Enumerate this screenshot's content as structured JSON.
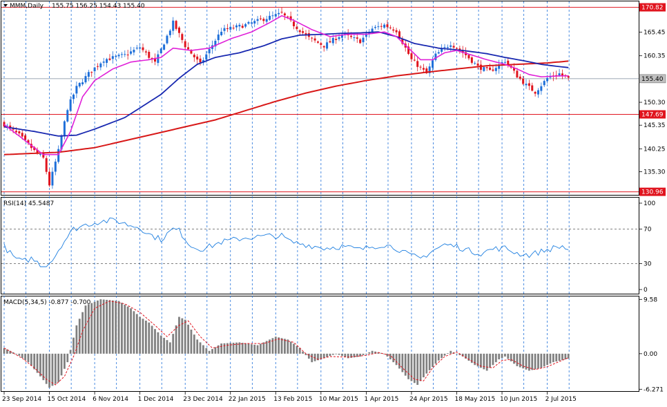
{
  "header": {
    "symbol_label": "MMM,Daily",
    "ohlc_label": "155.75 156.25 154.43 155.40"
  },
  "colors": {
    "bull": "#1e6fd9",
    "bear": "#e0141e",
    "ma_fast": "#e020d8",
    "ma_mid": "#1828b0",
    "ma_slow": "#d81818",
    "hline": "#e0141e",
    "rsi": "#1e7fe0",
    "macd_hist": "#808080",
    "macd_signal": "#e0141e",
    "grid": "#1e6fd9"
  },
  "chart_data": [
    {
      "type": "candlestick",
      "panel": "price",
      "ylim": [
        130.3,
        172.1
      ],
      "ytick_labels": [
        "165.45",
        "160.35",
        "150.30",
        "145.35",
        "140.25",
        "135.30"
      ],
      "ytick_values": [
        165.45,
        160.35,
        150.3,
        145.35,
        140.25,
        135.3
      ],
      "hlines": [
        {
          "value": 170.82,
          "label": "170.82"
        },
        {
          "value": 147.69,
          "label": "147.69"
        },
        {
          "value": 130.96,
          "label": "130.96"
        }
      ],
      "current_price": {
        "value": 155.4,
        "label": "155.40"
      },
      "x_labels": [
        "23 Sep 2014",
        "15 Oct 2014",
        "6 Nov 2014",
        "1 Dec 2014",
        "23 Dec 2014",
        "22 Jan 2015",
        "13 Feb 2015",
        "10 Mar 2015",
        "1 Apr 2015",
        "24 Apr 2015",
        "18 May 2015",
        "10 Jun 2015",
        "2 Jul 2015"
      ],
      "x_label_bars": [
        0,
        15,
        30,
        45,
        60,
        75,
        90,
        105,
        120,
        135,
        150,
        165,
        180
      ],
      "close_anchors": [
        [
          0,
          145.5
        ],
        [
          5,
          143.2
        ],
        [
          10,
          139.8
        ],
        [
          13,
          138.2
        ],
        [
          15,
          132.5
        ],
        [
          18,
          139.8
        ],
        [
          21,
          149.0
        ],
        [
          24,
          153.5
        ],
        [
          28,
          156.5
        ],
        [
          33,
          159.5
        ],
        [
          40,
          160.5
        ],
        [
          45,
          162.2
        ],
        [
          50,
          158.8
        ],
        [
          56,
          167.5
        ],
        [
          60,
          162.5
        ],
        [
          65,
          158.5
        ],
        [
          72,
          165.8
        ],
        [
          80,
          167.0
        ],
        [
          87,
          168.5
        ],
        [
          92,
          169.5
        ],
        [
          96,
          167.0
        ],
        [
          101,
          164.2
        ],
        [
          106,
          162.5
        ],
        [
          112,
          165.0
        ],
        [
          118,
          163.5
        ],
        [
          122,
          166.2
        ],
        [
          126,
          167.0
        ],
        [
          130,
          165.8
        ],
        [
          135,
          159.5
        ],
        [
          140,
          156.5
        ],
        [
          143,
          160.5
        ],
        [
          148,
          163.0
        ],
        [
          153,
          160.5
        ],
        [
          157,
          158.0
        ],
        [
          161,
          157.0
        ],
        [
          166,
          159.3
        ],
        [
          170,
          156.0
        ],
        [
          173,
          154.0
        ],
        [
          176,
          152.5
        ],
        [
          180,
          155.5
        ],
        [
          184,
          156.5
        ],
        [
          187,
          155.4
        ]
      ],
      "ma_fast_anchors": [
        [
          0,
          145.5
        ],
        [
          7,
          142.0
        ],
        [
          13,
          139.0
        ],
        [
          18,
          139.0
        ],
        [
          22,
          144.0
        ],
        [
          26,
          151.5
        ],
        [
          30,
          155.0
        ],
        [
          36,
          157.5
        ],
        [
          42,
          159.0
        ],
        [
          48,
          159.5
        ],
        [
          52,
          160.0
        ],
        [
          56,
          162.0
        ],
        [
          62,
          161.5
        ],
        [
          68,
          162.0
        ],
        [
          75,
          164.0
        ],
        [
          82,
          165.5
        ],
        [
          88,
          167.5
        ],
        [
          92,
          169.0
        ],
        [
          96,
          168.0
        ],
        [
          102,
          166.0
        ],
        [
          108,
          164.5
        ],
        [
          114,
          165.0
        ],
        [
          120,
          165.0
        ],
        [
          126,
          165.5
        ],
        [
          130,
          164.5
        ],
        [
          134,
          162.0
        ],
        [
          138,
          159.5
        ],
        [
          142,
          159.5
        ],
        [
          146,
          161.0
        ],
        [
          150,
          161.5
        ],
        [
          155,
          160.5
        ],
        [
          160,
          159.5
        ],
        [
          166,
          158.5
        ],
        [
          170,
          157.5
        ],
        [
          174,
          156.3
        ],
        [
          178,
          155.8
        ],
        [
          184,
          156.0
        ],
        [
          187,
          156.0
        ]
      ],
      "ma_mid_anchors": [
        [
          0,
          145.0
        ],
        [
          10,
          144.0
        ],
        [
          18,
          143.0
        ],
        [
          24,
          143.2
        ],
        [
          30,
          144.5
        ],
        [
          40,
          147.0
        ],
        [
          46,
          149.5
        ],
        [
          52,
          152.0
        ],
        [
          58,
          155.5
        ],
        [
          64,
          158.5
        ],
        [
          70,
          160.0
        ],
        [
          78,
          161.0
        ],
        [
          86,
          162.5
        ],
        [
          92,
          164.0
        ],
        [
          98,
          164.8
        ],
        [
          106,
          165.0
        ],
        [
          112,
          165.2
        ],
        [
          118,
          165.3
        ],
        [
          124,
          165.5
        ],
        [
          130,
          164.5
        ],
        [
          136,
          163.0
        ],
        [
          144,
          162.0
        ],
        [
          152,
          161.5
        ],
        [
          160,
          160.8
        ],
        [
          166,
          160.0
        ],
        [
          172,
          159.3
        ],
        [
          178,
          158.5
        ],
        [
          184,
          158.0
        ],
        [
          187,
          157.8
        ]
      ],
      "ma_slow_anchors": [
        [
          0,
          139.0
        ],
        [
          18,
          139.5
        ],
        [
          30,
          140.5
        ],
        [
          40,
          142.0
        ],
        [
          50,
          143.5
        ],
        [
          60,
          145.0
        ],
        [
          70,
          146.5
        ],
        [
          80,
          148.5
        ],
        [
          90,
          150.5
        ],
        [
          100,
          152.3
        ],
        [
          110,
          153.8
        ],
        [
          120,
          155.0
        ],
        [
          130,
          156.0
        ],
        [
          140,
          156.8
        ],
        [
          150,
          157.5
        ],
        [
          160,
          158.2
        ],
        [
          170,
          158.5
        ],
        [
          180,
          158.8
        ],
        [
          187,
          159.2
        ]
      ]
    },
    {
      "type": "line",
      "panel": "rsi",
      "label": "RSI(14) 45.5487",
      "ylim": [
        0,
        100
      ],
      "ytick_labels": [
        "100",
        "70",
        "30",
        "0"
      ],
      "ytick_values": [
        100,
        70,
        30,
        0
      ],
      "levels": [
        70,
        30
      ],
      "anchors": [
        [
          0,
          50
        ],
        [
          3,
          38
        ],
        [
          6,
          32
        ],
        [
          9,
          36
        ],
        [
          13,
          27
        ],
        [
          16,
          34
        ],
        [
          19,
          52
        ],
        [
          23,
          70
        ],
        [
          27,
          75
        ],
        [
          32,
          79
        ],
        [
          37,
          80
        ],
        [
          41,
          75
        ],
        [
          45,
          72
        ],
        [
          48,
          64
        ],
        [
          52,
          58
        ],
        [
          56,
          70
        ],
        [
          58,
          68
        ],
        [
          62,
          50
        ],
        [
          66,
          47
        ],
        [
          72,
          55
        ],
        [
          80,
          60
        ],
        [
          88,
          62
        ],
        [
          92,
          62
        ],
        [
          95,
          55
        ],
        [
          100,
          52
        ],
        [
          106,
          48
        ],
        [
          112,
          50
        ],
        [
          118,
          46
        ],
        [
          122,
          50
        ],
        [
          126,
          52
        ],
        [
          130,
          48
        ],
        [
          134,
          40
        ],
        [
          138,
          36
        ],
        [
          142,
          45
        ],
        [
          146,
          52
        ],
        [
          150,
          50
        ],
        [
          154,
          45
        ],
        [
          158,
          42
        ],
        [
          162,
          47
        ],
        [
          166,
          48
        ],
        [
          170,
          42
        ],
        [
          174,
          40
        ],
        [
          178,
          44
        ],
        [
          182,
          48
        ],
        [
          185,
          50
        ],
        [
          187,
          46
        ]
      ]
    },
    {
      "type": "bar",
      "panel": "macd",
      "label": "MACD(5,34,5) -0.877 -0.700",
      "ylim": [
        -6.6,
        10.1
      ],
      "ytick_labels": [
        "9.58",
        "0.00",
        "-6.271"
      ],
      "ytick_values": [
        9.58,
        0.0,
        -6.271
      ],
      "histogram_anchors": [
        [
          0,
          1.0
        ],
        [
          4,
          0.0
        ],
        [
          8,
          -1.5
        ],
        [
          12,
          -4.0
        ],
        [
          15,
          -6.0
        ],
        [
          18,
          -5.0
        ],
        [
          21,
          -1.5
        ],
        [
          24,
          5.0
        ],
        [
          27,
          8.5
        ],
        [
          32,
          9.6
        ],
        [
          38,
          9.3
        ],
        [
          42,
          8.0
        ],
        [
          45,
          6.5
        ],
        [
          48,
          5.5
        ],
        [
          52,
          3.2
        ],
        [
          55,
          2.0
        ],
        [
          58,
          6.5
        ],
        [
          60,
          6.0
        ],
        [
          64,
          2.5
        ],
        [
          68,
          0.5
        ],
        [
          72,
          1.8
        ],
        [
          78,
          2.0
        ],
        [
          84,
          1.5
        ],
        [
          90,
          3.0
        ],
        [
          94,
          2.5
        ],
        [
          98,
          1.0
        ],
        [
          102,
          -1.5
        ],
        [
          106,
          -0.8
        ],
        [
          110,
          0.0
        ],
        [
          114,
          -0.8
        ],
        [
          118,
          -0.5
        ],
        [
          122,
          0.5
        ],
        [
          126,
          0.0
        ],
        [
          130,
          -2.0
        ],
        [
          134,
          -4.5
        ],
        [
          137,
          -5.5
        ],
        [
          140,
          -3.5
        ],
        [
          144,
          -1.2
        ],
        [
          148,
          0.5
        ],
        [
          152,
          -0.5
        ],
        [
          156,
          -2.0
        ],
        [
          160,
          -3.0
        ],
        [
          164,
          -1.0
        ],
        [
          166,
          -0.5
        ],
        [
          170,
          -2.2
        ],
        [
          174,
          -3.0
        ],
        [
          178,
          -2.5
        ],
        [
          182,
          -1.5
        ],
        [
          187,
          -0.88
        ]
      ],
      "signal_anchors": [
        [
          0,
          1.0
        ],
        [
          6,
          -0.8
        ],
        [
          10,
          -2.5
        ],
        [
          14,
          -4.5
        ],
        [
          17,
          -5.5
        ],
        [
          20,
          -4.0
        ],
        [
          23,
          -0.5
        ],
        [
          26,
          4.0
        ],
        [
          30,
          8.0
        ],
        [
          35,
          9.3
        ],
        [
          40,
          8.8
        ],
        [
          45,
          7.3
        ],
        [
          50,
          5.0
        ],
        [
          54,
          3.0
        ],
        [
          58,
          5.0
        ],
        [
          61,
          5.8
        ],
        [
          65,
          3.0
        ],
        [
          69,
          1.0
        ],
        [
          74,
          1.5
        ],
        [
          80,
          1.8
        ],
        [
          86,
          1.8
        ],
        [
          91,
          2.6
        ],
        [
          96,
          2.0
        ],
        [
          100,
          0.0
        ],
        [
          104,
          -1.0
        ],
        [
          108,
          -0.5
        ],
        [
          114,
          -0.6
        ],
        [
          120,
          -0.3
        ],
        [
          124,
          0.2
        ],
        [
          128,
          -0.3
        ],
        [
          132,
          -2.5
        ],
        [
          136,
          -4.5
        ],
        [
          139,
          -4.8
        ],
        [
          142,
          -2.5
        ],
        [
          146,
          -0.5
        ],
        [
          150,
          0.3
        ],
        [
          154,
          -1.0
        ],
        [
          158,
          -2.2
        ],
        [
          162,
          -2.5
        ],
        [
          165,
          -1.2
        ],
        [
          168,
          -1.0
        ],
        [
          172,
          -2.2
        ],
        [
          176,
          -2.8
        ],
        [
          180,
          -2.3
        ],
        [
          187,
          -0.7
        ]
      ]
    }
  ]
}
